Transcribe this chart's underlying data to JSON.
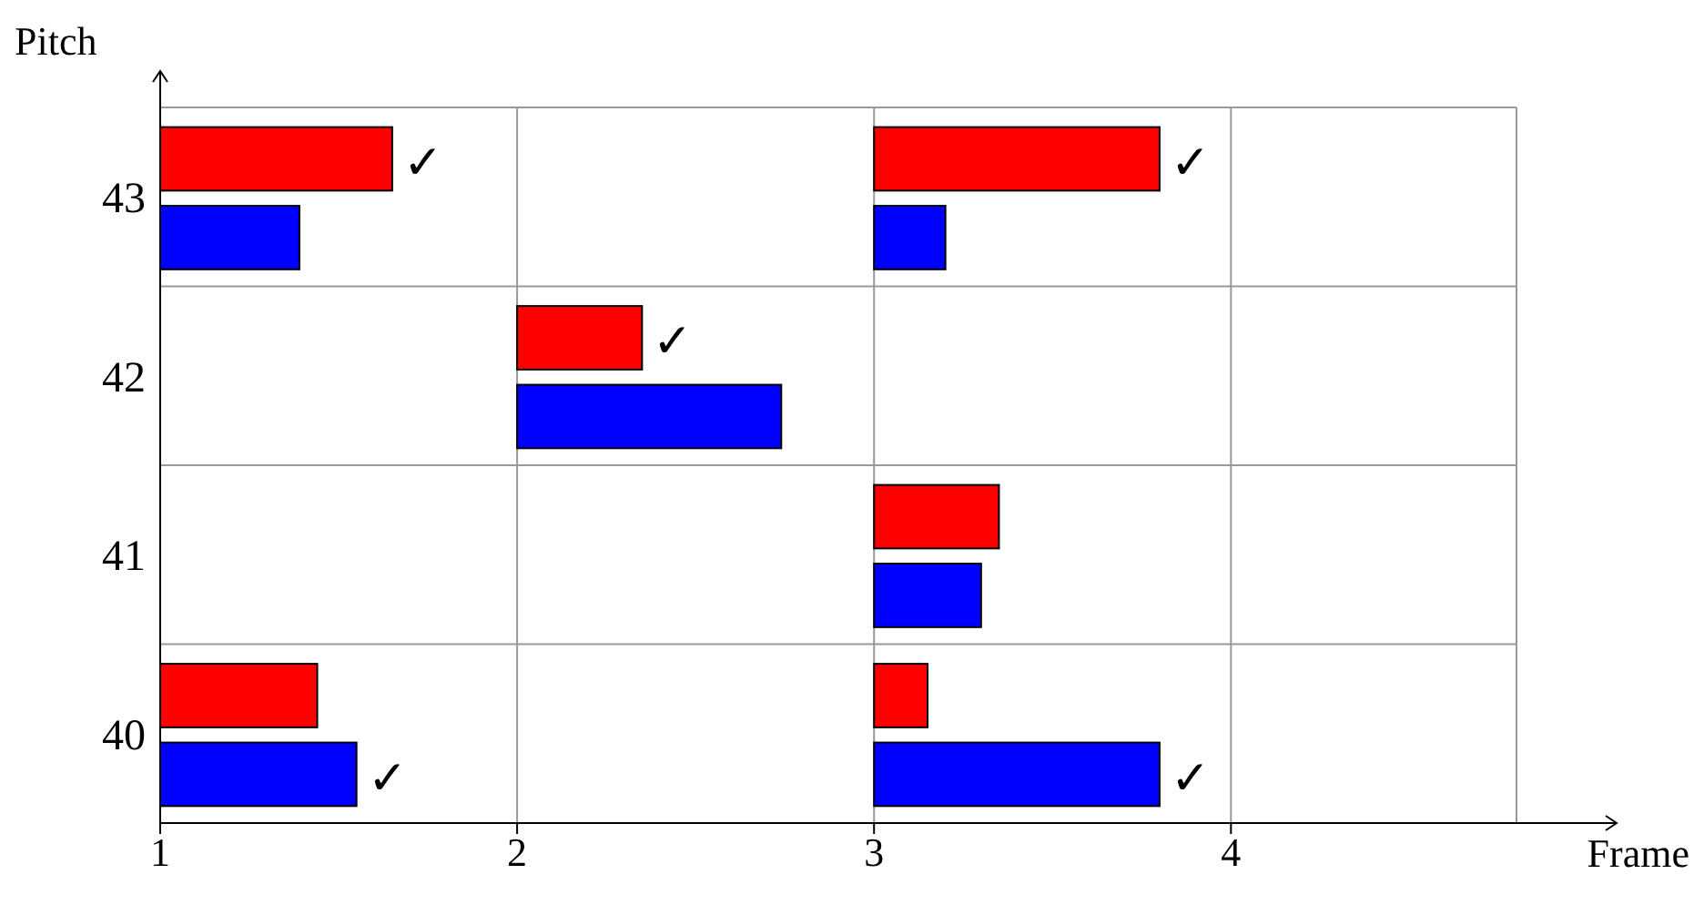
{
  "chart_data": {
    "type": "bar",
    "orientation": "horizontal",
    "xlabel": "Frame",
    "ylabel": "Pitch",
    "categories": [
      "43",
      "42",
      "41",
      "40"
    ],
    "series": [
      {
        "color": "#ff0000",
        "base": [
          1,
          null,
          null,
          1
        ],
        "values": [
          0.65,
          null,
          null,
          0.44
        ]
      },
      {
        "color": "#0000ff",
        "base": [
          1,
          null,
          null,
          1
        ],
        "values": [
          0.39,
          null,
          null,
          0.55
        ]
      },
      {
        "color": "#ff0000",
        "base": [
          null,
          2,
          null,
          null
        ],
        "values": [
          null,
          0.35,
          null,
          null
        ]
      },
      {
        "color": "#0000ff",
        "base": [
          null,
          2,
          null,
          null
        ],
        "values": [
          null,
          0.74,
          null,
          null
        ]
      },
      {
        "color": "#ff0000",
        "base": [
          3,
          null,
          3,
          3
        ],
        "values": [
          0.8,
          null,
          0.35,
          0.15
        ]
      },
      {
        "color": "#0000ff",
        "base": [
          3,
          null,
          3,
          3
        ],
        "values": [
          0.2,
          null,
          0.3,
          0.8
        ]
      }
    ],
    "xlim": [
      1,
      4.8
    ],
    "xticks": [
      1,
      2,
      3,
      4
    ],
    "grid": true,
    "legend": false,
    "annotations": [
      {
        "text": "✓",
        "x": 1.65,
        "y": "43"
      },
      {
        "text": "✓",
        "x": 3.8,
        "y": "43"
      },
      {
        "text": "✓",
        "x": 2.35,
        "y": "42"
      },
      {
        "text": "✓",
        "x": 1.55,
        "y": "40"
      },
      {
        "text": "✓",
        "x": 3.8,
        "y": "40"
      }
    ]
  }
}
